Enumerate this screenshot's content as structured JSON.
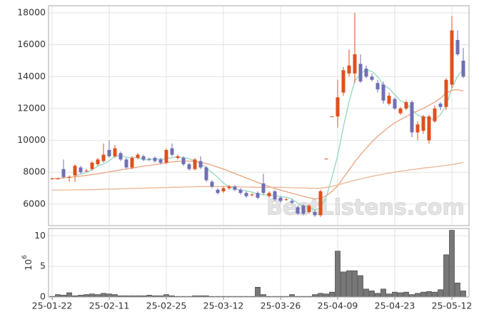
{
  "chart_data": {
    "type": "candlestick",
    "categories": [
      "25-01-22",
      null,
      null,
      null,
      null,
      null,
      null,
      null,
      null,
      null,
      "25-02-11",
      null,
      null,
      null,
      null,
      null,
      null,
      null,
      null,
      null,
      "25-02-25",
      null,
      null,
      null,
      null,
      null,
      null,
      null,
      null,
      null,
      "25-03-12",
      null,
      null,
      null,
      null,
      null,
      null,
      null,
      null,
      null,
      "25-03-26",
      null,
      null,
      null,
      null,
      null,
      null,
      null,
      null,
      null,
      "25-04-09",
      null,
      null,
      null,
      null,
      null,
      null,
      null,
      null,
      null,
      "25-04-23",
      null,
      null,
      null,
      null,
      null,
      null,
      null,
      null,
      null,
      "25-05-12",
      null,
      null
    ],
    "open": [
      7600,
      7600,
      8200,
      7700,
      7800,
      8300,
      8100,
      8200,
      8500,
      8700,
      9400,
      9000,
      9200,
      8800,
      8300,
      8900,
      9000,
      8850,
      8900,
      8800,
      8600,
      9500,
      8900,
      8900,
      8500,
      8200,
      8700,
      8300,
      7400,
      6900,
      6800,
      7000,
      7100,
      6900,
      6700,
      6600,
      6700,
      7300,
      6500,
      6800,
      6400,
      6300,
      6200,
      5800,
      5900,
      5500,
      5500,
      5300,
      8850,
      11500,
      11500,
      13000,
      14200,
      14200,
      14800,
      14500,
      14000,
      13600,
      13500,
      12300,
      12600,
      11700,
      12000,
      12400,
      10500,
      10600,
      10000,
      11200,
      12300,
      12100,
      13500,
      16300,
      15000
    ],
    "high": [
      7650,
      7650,
      8800,
      7800,
      8500,
      8400,
      8200,
      8700,
      8900,
      9800,
      10000,
      9700,
      9300,
      8900,
      9000,
      9200,
      9100,
      8900,
      9000,
      8900,
      9500,
      9800,
      9100,
      9000,
      8600,
      8900,
      9000,
      8400,
      7500,
      7000,
      7100,
      7200,
      7200,
      7000,
      6800,
      6700,
      6800,
      7900,
      6800,
      6900,
      6500,
      6400,
      6300,
      5900,
      6000,
      6000,
      5600,
      6900,
      8850,
      11500,
      13800,
      14600,
      15700,
      18000,
      15400,
      14700,
      14200,
      13800,
      13700,
      13000,
      12700,
      12100,
      12500,
      12500,
      11200,
      11600,
      11600,
      12200,
      12400,
      13900,
      17800,
      16900,
      15800
    ],
    "low": [
      7550,
      7550,
      7600,
      7400,
      7400,
      7900,
      8000,
      8100,
      8400,
      8600,
      8900,
      8900,
      8700,
      8200,
      8200,
      8800,
      8700,
      8700,
      8600,
      8500,
      8500,
      9000,
      8800,
      8400,
      8100,
      8100,
      8200,
      7400,
      7000,
      6600,
      6700,
      6900,
      6800,
      6600,
      6400,
      6500,
      6300,
      6600,
      6400,
      6200,
      6100,
      6200,
      6000,
      5300,
      5300,
      5400,
      5200,
      5200,
      8850,
      11500,
      10800,
      12800,
      14000,
      13600,
      13600,
      13900,
      13700,
      13000,
      12300,
      12200,
      11900,
      11600,
      11900,
      10200,
      10000,
      10400,
      9800,
      11100,
      11900,
      11900,
      13300,
      15300,
      13900
    ],
    "close": [
      7600,
      7600,
      7700,
      7700,
      8400,
      8000,
      8100,
      8600,
      8800,
      9100,
      9000,
      9500,
      8800,
      8300,
      8900,
      9100,
      8800,
      8800,
      8700,
      8600,
      9400,
      9100,
      9000,
      8500,
      8200,
      8800,
      8300,
      7500,
      7100,
      6700,
      7000,
      7100,
      6900,
      6700,
      6500,
      6600,
      6400,
      6700,
      6700,
      6300,
      6200,
      6300,
      6100,
      5400,
      5400,
      5900,
      5300,
      6800,
      8850,
      11500,
      12700,
      14400,
      14700,
      15400,
      13700,
      14000,
      13800,
      13200,
      12500,
      12800,
      12000,
      12000,
      12400,
      10500,
      11000,
      11500,
      11500,
      12000,
      12100,
      13800,
      16900,
      15400,
      14000
    ],
    "up_color": "#e0501e",
    "down_color": "#6f6fb5",
    "ylim": [
      4650,
      18450
    ],
    "yticks": [
      6000,
      8000,
      10000,
      12000,
      14000,
      16000,
      18000
    ],
    "grid": true,
    "lines": [
      {
        "color": "#92d8c4",
        "values": [
          null,
          null,
          null,
          null,
          7800,
          7880,
          7980,
          8160,
          8380,
          8520,
          8720,
          9000,
          9040,
          8940,
          8900,
          8920,
          8780,
          8780,
          8860,
          8800,
          8860,
          8920,
          8960,
          8920,
          8840,
          8720,
          8560,
          8260,
          7980,
          7680,
          7320,
          7080,
          6960,
          6880,
          6840,
          6760,
          6620,
          6580,
          6580,
          6540,
          6460,
          6440,
          6320,
          6060,
          5880,
          5820,
          5620,
          5760,
          6450,
          7670,
          9030,
          10850,
          12430,
          13740,
          14180,
          14440,
          14320,
          14020,
          13440,
          13260,
          12860,
          12500,
          12340,
          11940,
          11580,
          11480,
          11380,
          11300,
          11620,
          12180,
          13260,
          14040,
          14440
        ]
      },
      {
        "color": "#e9a47e",
        "values": [
          7600,
          7620,
          7650,
          7680,
          7720,
          7760,
          7800,
          7850,
          7900,
          7960,
          8020,
          8080,
          8150,
          8200,
          8260,
          8320,
          8380,
          8430,
          8480,
          8530,
          8600,
          8650,
          8680,
          8700,
          8700,
          8680,
          8620,
          8540,
          8440,
          8320,
          8200,
          8060,
          7920,
          7780,
          7640,
          7500,
          7360,
          7220,
          7100,
          6980,
          6880,
          6780,
          6680,
          6580,
          6480,
          6400,
          6330,
          6380,
          6520,
          6800,
          7150,
          7650,
          8150,
          8650,
          9100,
          9500,
          9900,
          10250,
          10550,
          10850,
          11100,
          11300,
          11500,
          11700,
          11850,
          12000,
          12200,
          12400,
          12650,
          12950,
          13150,
          13180,
          13100
        ]
      },
      {
        "color": "#ebb592",
        "values": [
          6880,
          6880,
          6885,
          6890,
          6895,
          6900,
          6905,
          6910,
          6920,
          6930,
          6940,
          6950,
          6960,
          6970,
          6980,
          6990,
          7000,
          7010,
          7020,
          7030,
          7040,
          7050,
          7060,
          7070,
          7080,
          7090,
          7100,
          7100,
          7100,
          7100,
          7100,
          7100,
          7090,
          7080,
          7070,
          7060,
          7050,
          7050,
          7050,
          7050,
          7050,
          7040,
          7030,
          7020,
          7010,
          7000,
          6990,
          7000,
          7050,
          7120,
          7200,
          7300,
          7400,
          7500,
          7580,
          7660,
          7740,
          7810,
          7880,
          7950,
          8010,
          8060,
          8110,
          8160,
          8210,
          8260,
          8300,
          8340,
          8380,
          8430,
          8480,
          8540,
          8620
        ]
      }
    ],
    "volume": {
      "color": "#777777",
      "ylim": [
        0,
        11.2
      ],
      "yticks": [
        0,
        5,
        10
      ],
      "ylabel_base": "10",
      "ylabel_exponent": "6",
      "values": [
        0.1,
        0.4,
        0.3,
        0.7,
        0.2,
        0.3,
        0.4,
        0.5,
        0.4,
        0.6,
        0.5,
        0.4,
        0.2,
        0.2,
        0.2,
        0.2,
        0.2,
        0.3,
        0.2,
        0.2,
        0.4,
        0.2,
        0.1,
        0.1,
        0.1,
        0.2,
        0.2,
        0.2,
        0.1,
        0.1,
        0.1,
        0.1,
        0.1,
        0.1,
        0.1,
        0.1,
        1.6,
        0.4,
        0.1,
        0.1,
        0.1,
        0.1,
        0.4,
        0.1,
        0.1,
        0.1,
        0.4,
        0.6,
        0.5,
        0.8,
        7.5,
        4.1,
        4.3,
        4.3,
        3.5,
        1.3,
        1.0,
        0.6,
        1.3,
        0.5,
        0.8,
        0.7,
        0.8,
        0.4,
        0.6,
        0.8,
        0.9,
        0.8,
        1.2,
        6.9,
        10.9,
        2.3,
        1.0
      ]
    },
    "watermark": "BestListens.com"
  }
}
